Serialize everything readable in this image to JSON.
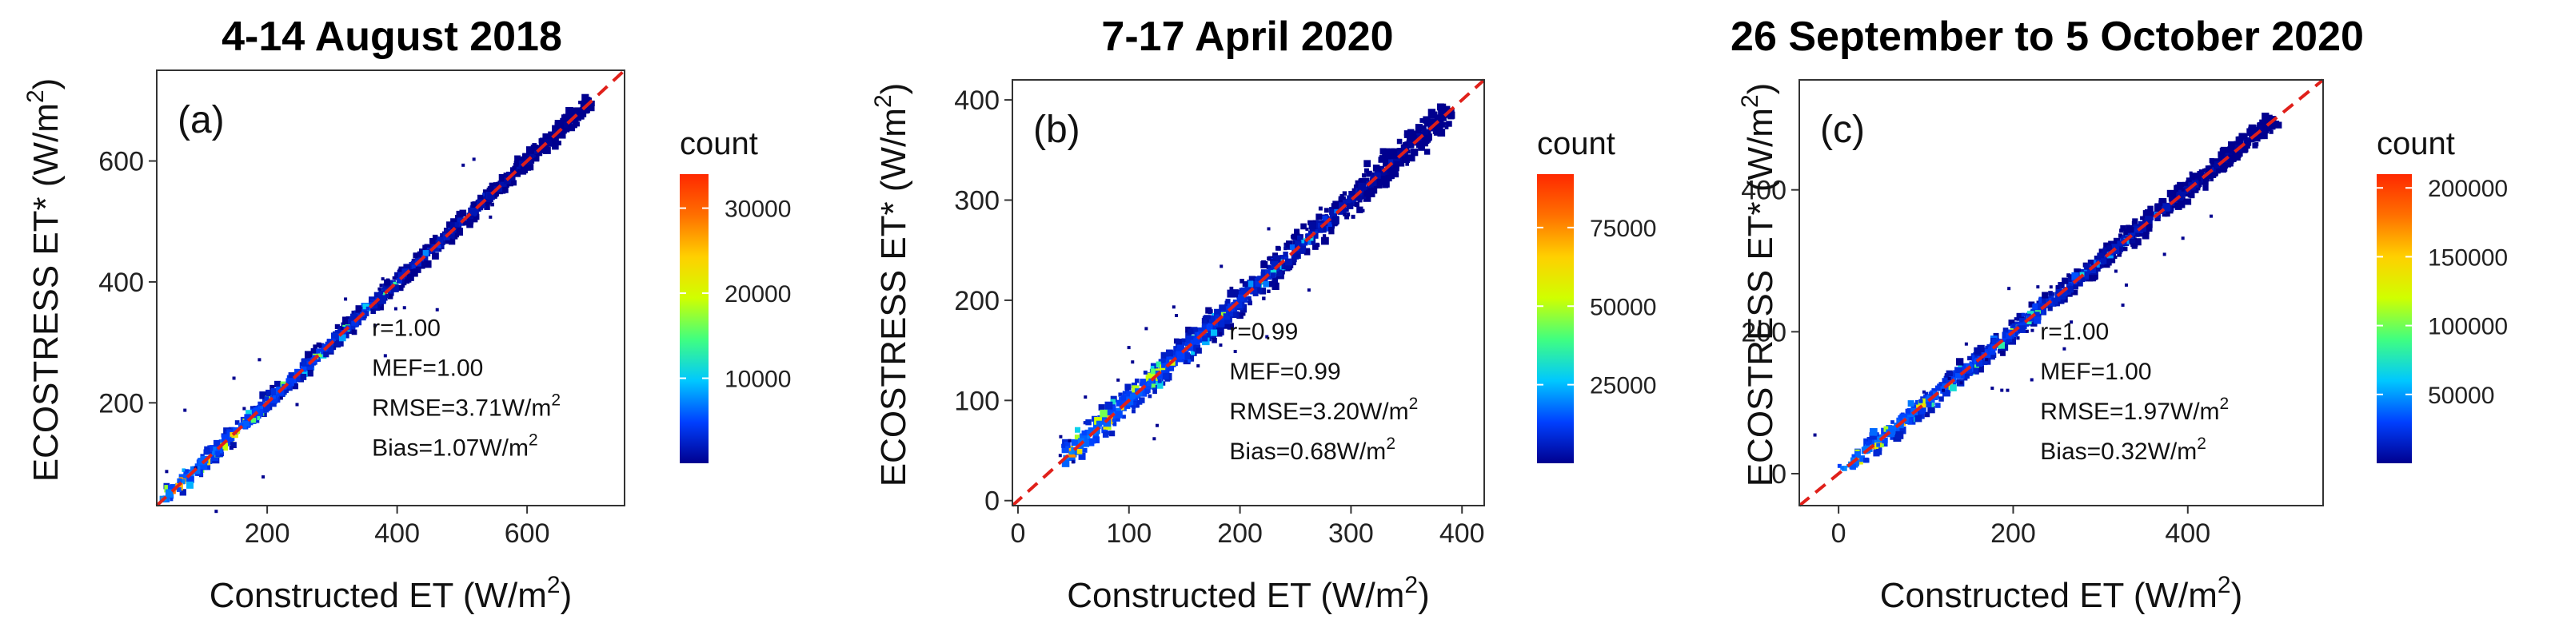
{
  "figure": {
    "colorbar_title": "count",
    "colormap": [
      "#00008f",
      "#0040ff",
      "#00c8ff",
      "#40ff80",
      "#d0ff00",
      "#ffd000",
      "#ff7000",
      "#ff2800"
    ],
    "identity_line_color": "#e0201a",
    "stat_labels": {
      "r": "r=",
      "mef": "MEF=",
      "rmse": "RMSE=",
      "bias": "Bias=",
      "unit_base": "W/m",
      "unit_sup": "2"
    }
  },
  "chart_data": [
    {
      "type": "heatmap",
      "panel_label": "(a)",
      "title": "4-14 August 2018",
      "xlabel": "Constructed ET (W/m",
      "xlabel_sup": "2",
      "xlabel_end": ")",
      "ylabel": "ECOSTRESS ET* (W/m",
      "ylabel_sup": "2",
      "ylabel_end": ")",
      "xlim": [
        30,
        750
      ],
      "ylim": [
        30,
        750
      ],
      "xticks": [
        200,
        400,
        600
      ],
      "yticks": [
        200,
        400,
        600
      ],
      "data_range": [
        40,
        700
      ],
      "max_count": 34000,
      "colorbar_ticks": [
        10000,
        20000,
        30000
      ],
      "stats": {
        "r": "1.00",
        "mef": "1.00",
        "rmse": "3.71",
        "bias": "1.07"
      }
    },
    {
      "type": "heatmap",
      "panel_label": "(b)",
      "title": "7-17 April 2020",
      "xlabel": "Constructed ET (W/m",
      "xlabel_sup": "2",
      "xlabel_end": ")",
      "ylabel": "ECOSTRESS ET* (W/m",
      "ylabel_sup": "2",
      "ylabel_end": ")",
      "xlim": [
        -5,
        420
      ],
      "ylim": [
        -5,
        420
      ],
      "xticks": [
        0,
        100,
        200,
        300,
        400
      ],
      "yticks": [
        0,
        100,
        200,
        300,
        400
      ],
      "data_range": [
        40,
        390
      ],
      "max_count": 92000,
      "colorbar_ticks": [
        25000,
        50000,
        75000
      ],
      "stats": {
        "r": "0.99",
        "mef": "0.99",
        "rmse": "3.20",
        "bias": "0.68"
      }
    },
    {
      "type": "heatmap",
      "panel_label": "(c)",
      "title": "26 September to 5 October 2020",
      "xlabel": "Constructed ET (W/m",
      "xlabel_sup": "2",
      "xlabel_end": ")",
      "ylabel": "ECOSTRESS ET* (W/m",
      "ylabel_sup": "2",
      "ylabel_end": ")",
      "xlim": [
        -45,
        555
      ],
      "ylim": [
        -45,
        555
      ],
      "xticks": [
        0,
        200,
        400
      ],
      "yticks": [
        0,
        200,
        400
      ],
      "data_range": [
        5,
        500
      ],
      "max_count": 210000,
      "colorbar_ticks": [
        50000,
        100000,
        150000,
        200000
      ],
      "stats": {
        "r": "1.00",
        "mef": "1.00",
        "rmse": "1.97",
        "bias": "0.32"
      }
    }
  ]
}
